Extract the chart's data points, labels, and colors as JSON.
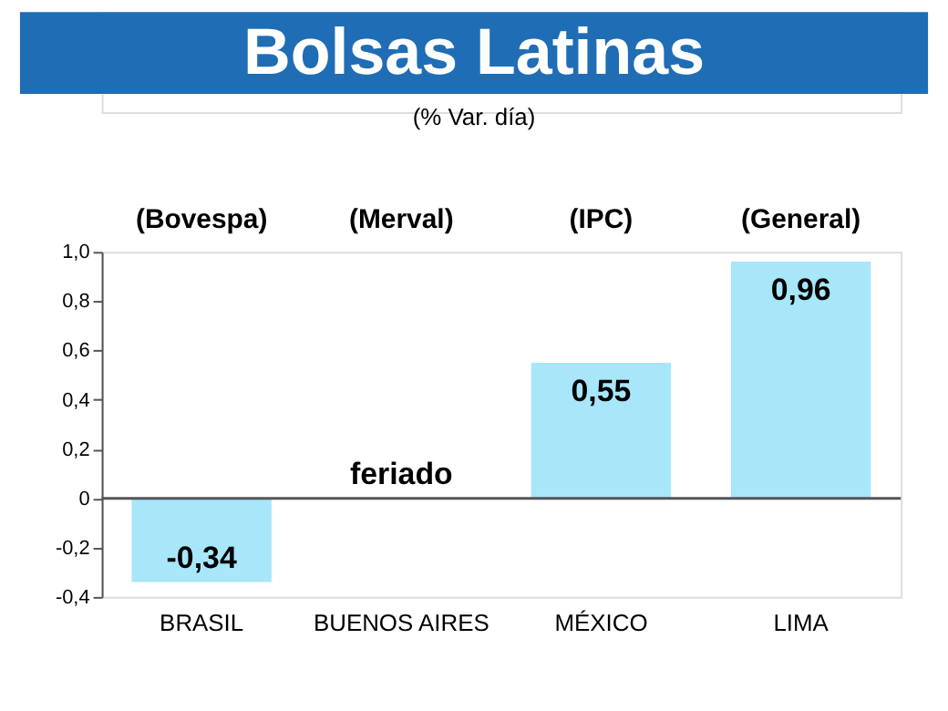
{
  "chart_data": {
    "type": "bar",
    "title": "Bolsas Latinas",
    "subtitle": "(% Var. día)",
    "categories": [
      "BRASIL",
      "BUENOS AIRES",
      "MÉXICO",
      "LIMA"
    ],
    "values": [
      -0.34,
      null,
      0.55,
      0.96
    ],
    "value_labels": [
      "-0,34",
      "feriado",
      "0,55",
      "0,96"
    ],
    "color": "#a8e6fa",
    "ylim": [
      -0.4,
      1.0
    ],
    "yticks": [
      {
        "value": -0.4,
        "label": "-0,4"
      },
      {
        "value": -0.2,
        "label": "-0,2"
      },
      0,
      {
        "value": 0.2,
        "label": "0,2"
      },
      {
        "value": 0.4,
        "label": "0,4"
      },
      {
        "value": 0.6,
        "label": "0,6"
      },
      {
        "value": 0.8,
        "label": "0,8"
      },
      {
        "value": 1.0,
        "label": "1,0"
      }
    ],
    "grid": false,
    "ref_lines": [
      {
        "axis": "y",
        "value": 0,
        "color": "#555555"
      }
    ],
    "annotations": [
      "(Bovespa)",
      "(Merval)",
      "(IPC)",
      "(General)"
    ]
  }
}
